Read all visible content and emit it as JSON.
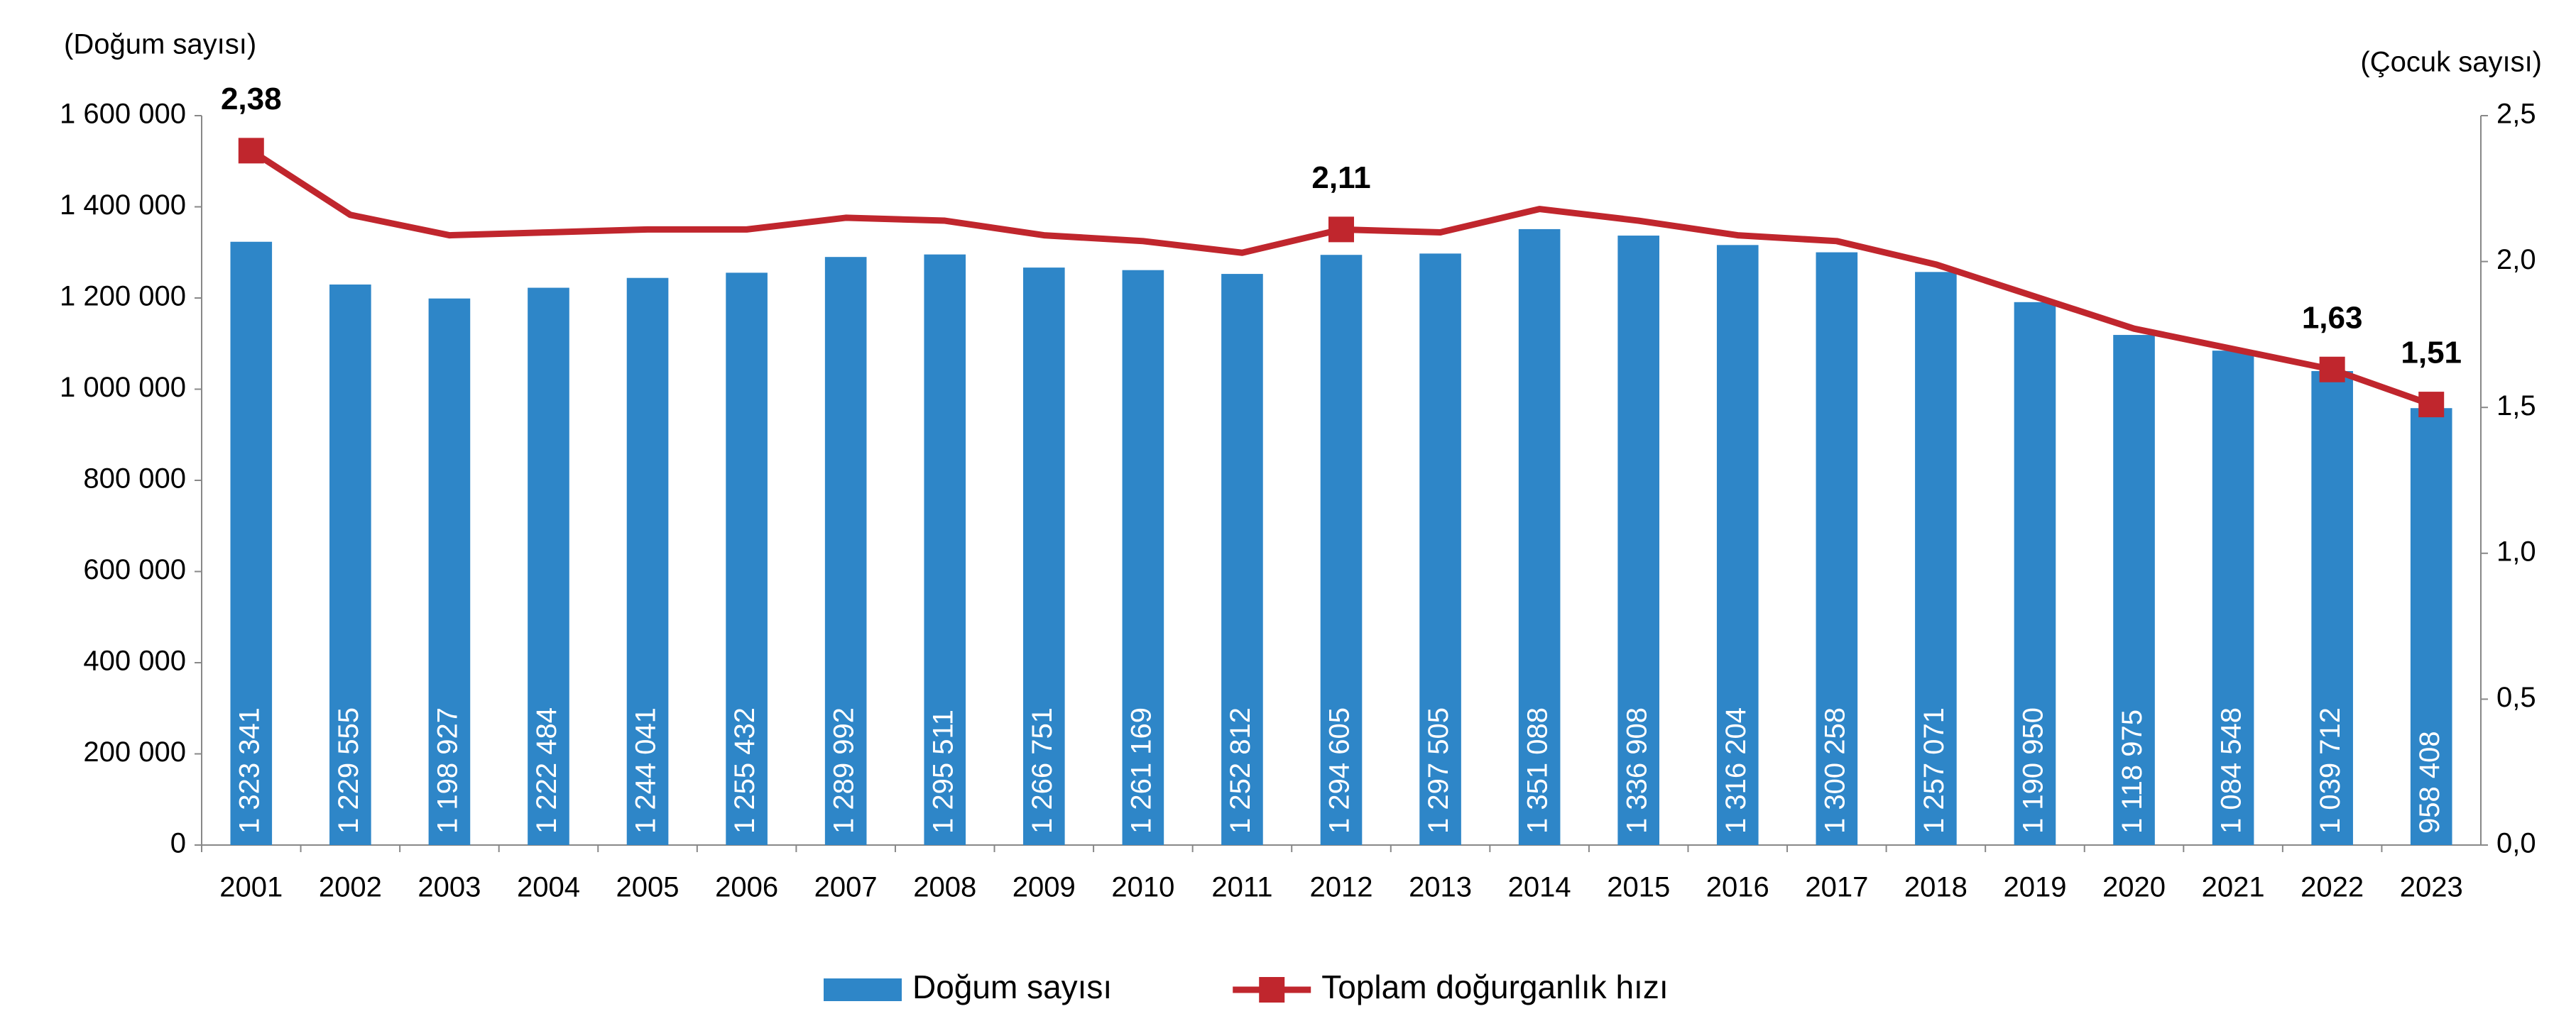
{
  "chart_data": {
    "type": "bar-line",
    "ylabel": "(Doğum sayısı)",
    "y2label": "(Çocuk sayısı)",
    "categories": [
      "2001",
      "2002",
      "2003",
      "2004",
      "2005",
      "2006",
      "2007",
      "2008",
      "2009",
      "2010",
      "2011",
      "2012",
      "2013",
      "2014",
      "2015",
      "2016",
      "2017",
      "2018",
      "2019",
      "2020",
      "2021",
      "2022",
      "2023"
    ],
    "series": [
      {
        "name": "Doğum sayısı",
        "type": "bar",
        "color": "#2e86c8",
        "values": [
          1323341,
          1229555,
          1198927,
          1222484,
          1244041,
          1255432,
          1289992,
          1295511,
          1266751,
          1261169,
          1252812,
          1294605,
          1297505,
          1351088,
          1336908,
          1316204,
          1300258,
          1257071,
          1190950,
          1118975,
          1084548,
          1039712,
          958408
        ],
        "value_labels": [
          "1 323 341",
          "1 229 555",
          "1 198 927",
          "1 222 484",
          "1 244 041",
          "1 255 432",
          "1 289 992",
          "1 295 511",
          "1 266 751",
          "1 261 169",
          "1 252 812",
          "1 294 605",
          "1 297 505",
          "1 351 088",
          "1 336 908",
          "1 316 204",
          "1 300 258",
          "1 257 071",
          "1 190 950",
          "1 118 975",
          "1 084 548",
          "1 039 712",
          "958 408"
        ]
      },
      {
        "name": "Toplam doğurganlık hızı",
        "type": "line",
        "axis": "y2",
        "color": "#c0262d",
        "values": [
          2.38,
          2.16,
          2.09,
          2.1,
          2.11,
          2.11,
          2.15,
          2.14,
          2.09,
          2.07,
          2.03,
          2.11,
          2.1,
          2.18,
          2.14,
          2.09,
          2.07,
          1.99,
          1.88,
          1.77,
          1.7,
          1.63,
          1.51
        ],
        "value_labels": [
          "2,38",
          null,
          null,
          null,
          null,
          null,
          null,
          null,
          null,
          null,
          null,
          "2,11",
          null,
          null,
          null,
          null,
          null,
          null,
          null,
          null,
          null,
          "1,63",
          "1,51"
        ]
      }
    ],
    "ylim": [
      0,
      1600000
    ],
    "yticks": [
      0,
      {
        "value": 200000,
        "label": "200 000"
      },
      {
        "value": 400000,
        "label": "400 000"
      },
      {
        "value": 600000,
        "label": "600 000"
      },
      {
        "value": 800000,
        "label": "800 000"
      },
      {
        "value": 1000000,
        "label": "1 000 000"
      },
      {
        "value": 1200000,
        "label": "1 200 000"
      },
      {
        "value": 1400000,
        "label": "1 400 000"
      },
      {
        "value": 1600000,
        "label": "1 600 000"
      }
    ],
    "y2lim": [
      0,
      2.5
    ],
    "y2ticks": [
      {
        "value": 0,
        "label": "0,0"
      },
      {
        "value": 0.5,
        "label": "0,5"
      },
      {
        "value": 1,
        "label": "1,0"
      },
      {
        "value": 1.5,
        "label": "1,5"
      },
      {
        "value": 2,
        "label": "2,0"
      },
      {
        "value": 2.5,
        "label": "2,5"
      }
    ],
    "grid": false
  }
}
